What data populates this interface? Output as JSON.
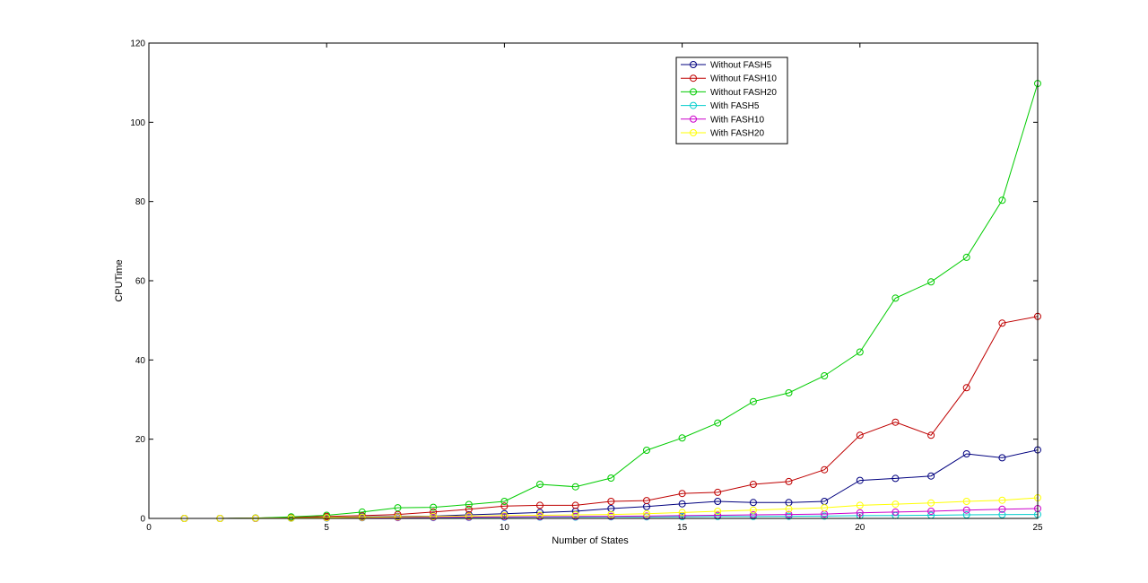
{
  "chart_data": {
    "type": "line",
    "title": "",
    "xlabel": "Number of States",
    "ylabel": "CPUTime",
    "xlim": [
      0,
      25
    ],
    "ylim": [
      0,
      120
    ],
    "xticks": [
      0,
      5,
      10,
      15,
      20,
      25
    ],
    "yticks": [
      0,
      20,
      40,
      60,
      80,
      100,
      120
    ],
    "grid": false,
    "legend_position": "top-right",
    "x": [
      1,
      2,
      3,
      4,
      5,
      6,
      7,
      8,
      9,
      10,
      11,
      12,
      13,
      14,
      15,
      16,
      17,
      18,
      19,
      20,
      21,
      22,
      23,
      24,
      25
    ],
    "series": [
      {
        "name": "Without FASH5",
        "color": "#00007f",
        "values": [
          0.0,
          0.0,
          0.05,
          0.15,
          0.25,
          0.4,
          0.5,
          0.6,
          0.9,
          1.2,
          1.5,
          1.8,
          2.5,
          3.0,
          3.7,
          4.3,
          4.0,
          4.0,
          4.3,
          9.6,
          10.1,
          10.7,
          16.3,
          15.3,
          17.3
        ]
      },
      {
        "name": "Without FASH10",
        "color": "#bf0000",
        "values": [
          0.0,
          0.0,
          0.1,
          0.3,
          0.5,
          0.7,
          1.0,
          1.6,
          2.3,
          3.1,
          3.3,
          3.3,
          4.3,
          4.5,
          6.3,
          6.6,
          8.6,
          9.3,
          12.3,
          21.0,
          24.3,
          21.0,
          33.0,
          49.3,
          51.0
        ]
      },
      {
        "name": "Without FASH20",
        "color": "#00cc00",
        "values": [
          0.0,
          0.0,
          0.1,
          0.4,
          0.8,
          1.6,
          2.7,
          2.8,
          3.5,
          4.3,
          8.6,
          8.0,
          10.2,
          17.2,
          20.3,
          24.1,
          29.5,
          31.7,
          36.0,
          42.0,
          55.6,
          59.7,
          65.9,
          80.3,
          109.8
        ]
      },
      {
        "name": "With FASH5",
        "color": "#00cccc",
        "values": [
          0.0,
          0.0,
          0.0,
          0.05,
          0.1,
          0.15,
          0.2,
          0.2,
          0.25,
          0.3,
          0.35,
          0.35,
          0.4,
          0.4,
          0.45,
          0.5,
          0.5,
          0.55,
          0.6,
          0.7,
          0.75,
          0.8,
          0.9,
          0.95,
          1.0
        ]
      },
      {
        "name": "With FASH10",
        "color": "#cc00cc",
        "values": [
          0.0,
          0.0,
          0.0,
          0.1,
          0.15,
          0.2,
          0.25,
          0.3,
          0.35,
          0.4,
          0.45,
          0.5,
          0.55,
          0.6,
          0.7,
          0.8,
          0.9,
          1.0,
          1.1,
          1.4,
          1.6,
          1.8,
          2.1,
          2.3,
          2.5
        ]
      },
      {
        "name": "With FASH20",
        "color": "#ffff00",
        "values": [
          0.0,
          0.0,
          0.05,
          0.1,
          0.2,
          0.3,
          0.4,
          0.5,
          0.6,
          0.7,
          0.8,
          0.9,
          1.0,
          1.2,
          1.5,
          1.8,
          2.1,
          2.4,
          2.7,
          3.3,
          3.6,
          3.9,
          4.3,
          4.6,
          5.2
        ]
      }
    ]
  }
}
